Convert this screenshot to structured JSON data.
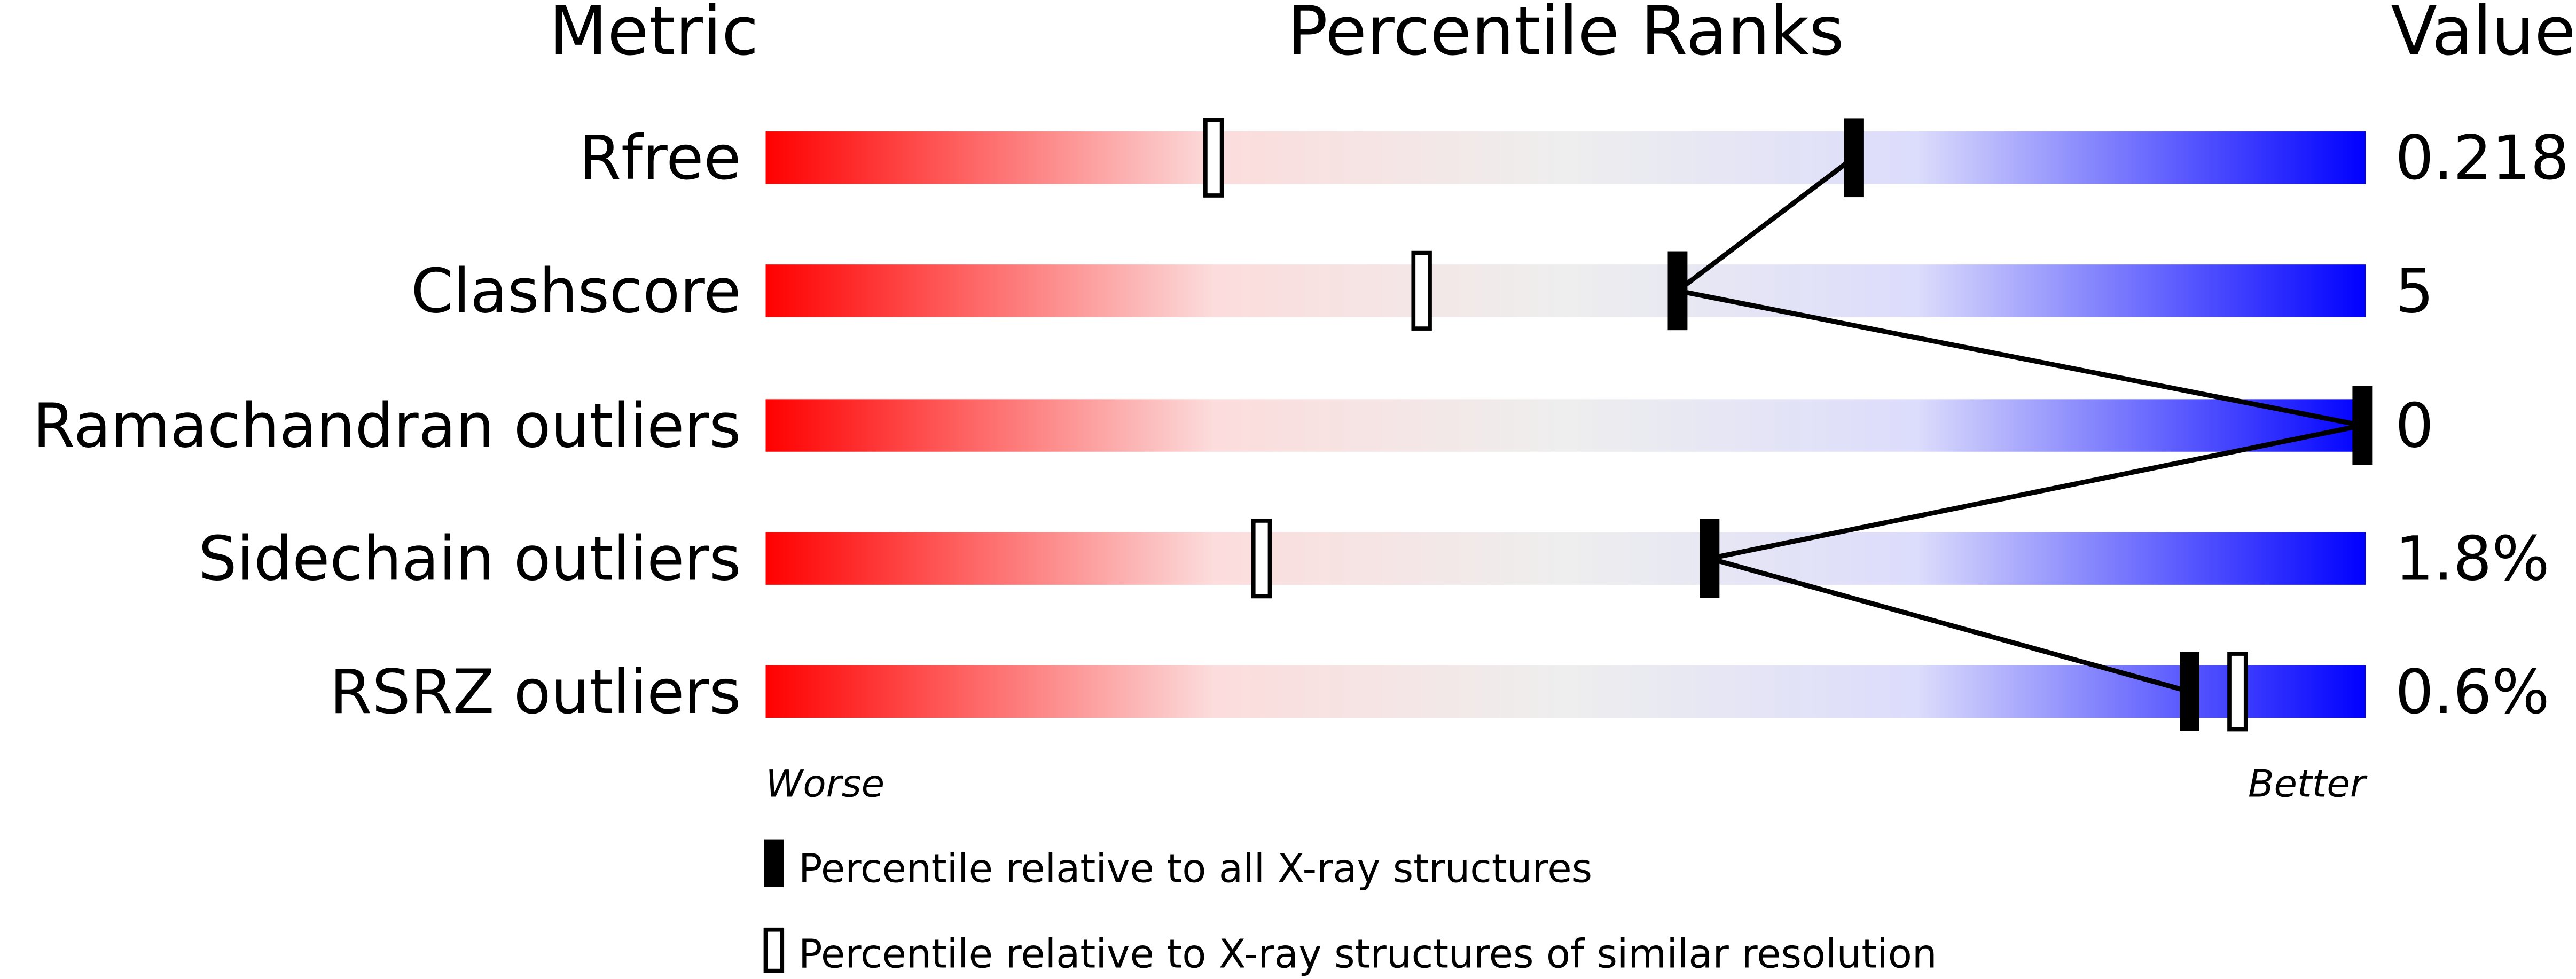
{
  "chart_data": {
    "type": "percentile-bar",
    "headers": {
      "metric": "Metric",
      "ranks": "Percentile Ranks",
      "value": "Value"
    },
    "xlim": [
      0,
      100
    ],
    "axis_labels": {
      "left": "Worse",
      "right": "Better"
    },
    "colors": {
      "worse": "#ff0000",
      "mid": "#eeeeee",
      "better": "#0000ff",
      "marker": "#000000"
    },
    "metrics": [
      {
        "name": "Rfree",
        "value": "0.218",
        "percentile_all": 68,
        "percentile_similar": 28
      },
      {
        "name": "Clashscore",
        "value": "5",
        "percentile_all": 57,
        "percentile_similar": 41
      },
      {
        "name": "Ramachandran outliers",
        "value": "0",
        "percentile_all": 100,
        "percentile_similar": null
      },
      {
        "name": "Sidechain outliers",
        "value": "1.8%",
        "percentile_all": 59,
        "percentile_similar": 31
      },
      {
        "name": "RSRZ outliers",
        "value": "0.6%",
        "percentile_all": 89,
        "percentile_similar": 92
      }
    ],
    "legend": [
      {
        "marker": "filled",
        "label": "Percentile relative to all X-ray structures"
      },
      {
        "marker": "open",
        "label": "Percentile relative to X-ray structures of similar resolution"
      }
    ]
  }
}
